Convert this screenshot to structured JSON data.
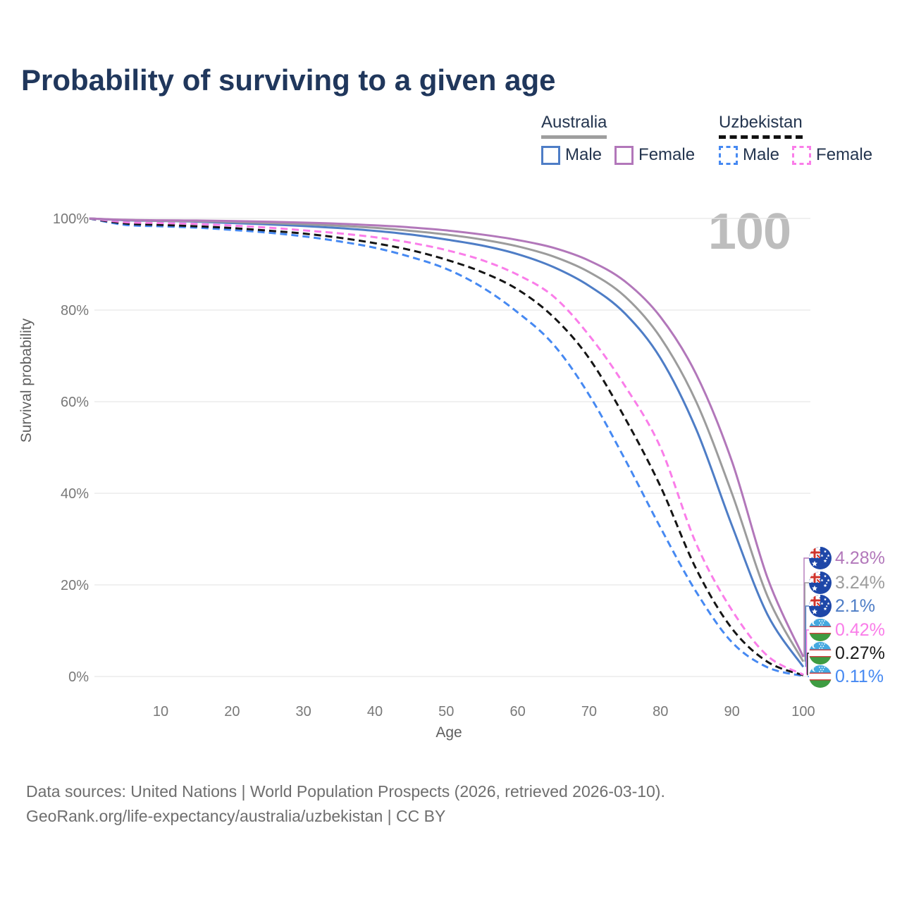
{
  "title": "Probability of surviving to a given age",
  "watermark": "100",
  "legend": {
    "groups": [
      {
        "name": "Australia",
        "line_style": "solid",
        "header_underline": "#9E9E9E",
        "items": [
          {
            "label": "Male",
            "color": "#4E7DC6"
          },
          {
            "label": "Female",
            "color": "#B277BA"
          }
        ]
      },
      {
        "name": "Uzbekistan",
        "line_style": "dashed",
        "header_underline": "#111111",
        "items": [
          {
            "label": "Male",
            "color": "#4689F2"
          },
          {
            "label": "Female",
            "color": "#FA7DE9"
          }
        ]
      }
    ]
  },
  "axes": {
    "x": {
      "title": "Age",
      "ticks": [
        10,
        20,
        30,
        40,
        50,
        60,
        70,
        80,
        90,
        100
      ],
      "min": 0,
      "max": 100
    },
    "y": {
      "title": "Survival probability",
      "ticks": [
        "0%",
        "20%",
        "40%",
        "60%",
        "80%",
        "100%"
      ],
      "tick_values": [
        0,
        20,
        40,
        60,
        80,
        100
      ],
      "min": 0,
      "max": 100,
      "grid": true
    }
  },
  "chart_data": {
    "type": "line",
    "title": "Probability of surviving to a given age",
    "xlabel": "Age",
    "ylabel": "Survival probability",
    "xlim": [
      0,
      100
    ],
    "ylim": [
      0,
      100
    ],
    "x_ages": [
      0,
      5,
      10,
      15,
      20,
      25,
      30,
      35,
      40,
      45,
      50,
      55,
      60,
      65,
      70,
      75,
      80,
      85,
      90,
      95,
      100
    ],
    "series": [
      {
        "name": "Australia Female",
        "country": "Australia",
        "sex": "Female",
        "flag": "australia",
        "color": "#B277BA",
        "dash": "solid",
        "end_label": "4.28%",
        "values": [
          100,
          99.7,
          99.6,
          99.55,
          99.45,
          99.3,
          99.1,
          98.85,
          98.5,
          98.05,
          97.4,
          96.5,
          95.3,
          93.6,
          90.8,
          86.3,
          78.5,
          66,
          47,
          21.5,
          4.28
        ]
      },
      {
        "name": "Australia Both sexes",
        "country": "Australia",
        "sex": "Both",
        "flag": "australia",
        "color": "#9C9C9C",
        "dash": "solid",
        "end_label": "3.24%",
        "values": [
          100,
          99.65,
          99.5,
          99.4,
          99.25,
          99.0,
          98.75,
          98.4,
          97.95,
          97.3,
          96.5,
          95.4,
          93.9,
          91.7,
          88.3,
          83,
          74,
          60,
          40,
          17.5,
          3.24
        ]
      },
      {
        "name": "Australia Male",
        "country": "Australia",
        "sex": "Male",
        "flag": "australia",
        "color": "#4E7DC6",
        "dash": "solid",
        "end_label": "2.1%",
        "values": [
          100,
          99.6,
          99.45,
          99.3,
          99.0,
          98.7,
          98.35,
          97.9,
          97.3,
          96.5,
          95.4,
          94.1,
          92.2,
          89.4,
          85.3,
          79.3,
          69.5,
          54,
          33,
          13.5,
          2.1
        ]
      },
      {
        "name": "Uzbekistan Female",
        "country": "Uzbekistan",
        "sex": "Female",
        "flag": "uzbekistan",
        "color": "#FA7DE9",
        "dash": "dashed",
        "end_label": "0.42%",
        "values": [
          100,
          99.2,
          99.0,
          98.8,
          98.45,
          98.0,
          97.4,
          96.75,
          95.9,
          94.7,
          93.1,
          90.9,
          87.7,
          83,
          74.5,
          63.5,
          50,
          29,
          14.5,
          4.5,
          0.42
        ]
      },
      {
        "name": "Uzbekistan Both sexes",
        "country": "Uzbekistan",
        "sex": "Both",
        "flag": "uzbekistan",
        "color": "#151515",
        "dash": "dashed",
        "end_label": "0.27%",
        "values": [
          100,
          98.9,
          98.6,
          98.3,
          97.9,
          97.35,
          96.7,
          95.8,
          94.6,
          93.1,
          91.0,
          88.3,
          84.5,
          78.5,
          69.5,
          56.5,
          41.5,
          23.5,
          10.5,
          3.2,
          0.27
        ]
      },
      {
        "name": "Uzbekistan Male",
        "country": "Uzbekistan",
        "sex": "Male",
        "flag": "uzbekistan",
        "color": "#4689F2",
        "dash": "dashed",
        "end_label": "0.11%",
        "values": [
          100,
          98.6,
          98.3,
          98.0,
          97.5,
          96.9,
          96.1,
          95.0,
          93.6,
          91.6,
          89.0,
          85.0,
          79.5,
          72.5,
          61.5,
          47.5,
          32.5,
          18.5,
          7.5,
          2.0,
          0.11
        ]
      }
    ]
  },
  "footer": {
    "line1": "Data sources: United Nations | World Population Prospects (2026, retrieved 2026-03-10).",
    "line2": "GeoRank.org/life-expectancy/australia/uzbekistan | CC BY"
  }
}
